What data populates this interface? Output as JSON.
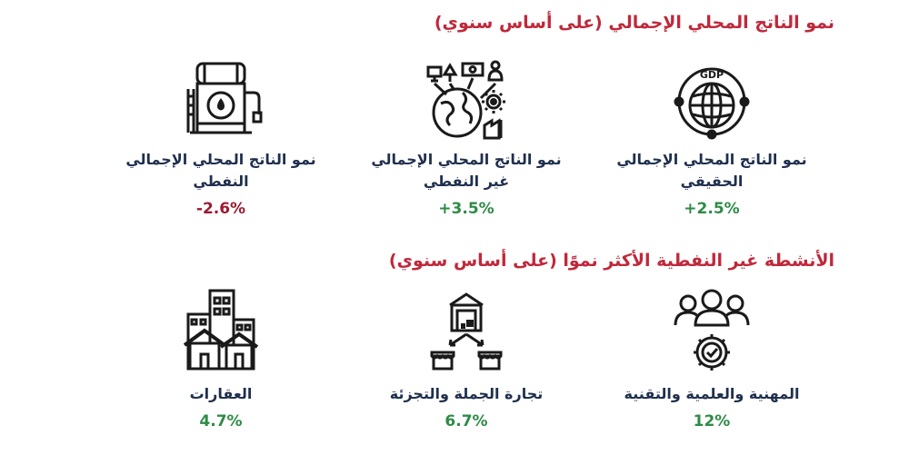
{
  "gdp_section": {
    "title": "نمو الناتج المحلي الإجمالي (على أساس سنوي)",
    "cards": [
      {
        "label_line1": "نمو الناتج المحلي الإجمالي",
        "label_line2": "الحقيقي",
        "value": "+2.5%",
        "icon": "gdp-globe-icon",
        "value_color": "#2e8b46"
      },
      {
        "label_line1": "نمو الناتج المحلي الإجمالي",
        "label_line2": "غير النفطي",
        "value": "+3.5%",
        "icon": "globe-industry-icon",
        "value_color": "#2e8b46"
      },
      {
        "label_line1": "نمو الناتج المحلي الإجمالي",
        "label_line2": "النفطي",
        "value": "-2.6%",
        "icon": "oil-tank-icon",
        "value_color": "#9b1b30"
      }
    ]
  },
  "nonoil_section": {
    "title": "الأنشطة غير النفطية الأكثر نموًا (على أساس سنوي)",
    "cards": [
      {
        "label": "المهنية والعلمية والتقنية",
        "value": "12%",
        "icon": "people-gear-icon",
        "value_color": "#2e8b46"
      },
      {
        "label": "تجارة الجملة والتجزئة",
        "value": "6.7%",
        "icon": "warehouse-shops-icon",
        "value_color": "#2e8b46"
      },
      {
        "label": "العقارات",
        "value": "4.7%",
        "icon": "buildings-icon",
        "value_color": "#2e8b46"
      }
    ]
  },
  "colors": {
    "title_red": "#c0283b",
    "label_navy": "#1f2f4e",
    "positive_green": "#2e8b46",
    "negative_red": "#9b1b30"
  }
}
